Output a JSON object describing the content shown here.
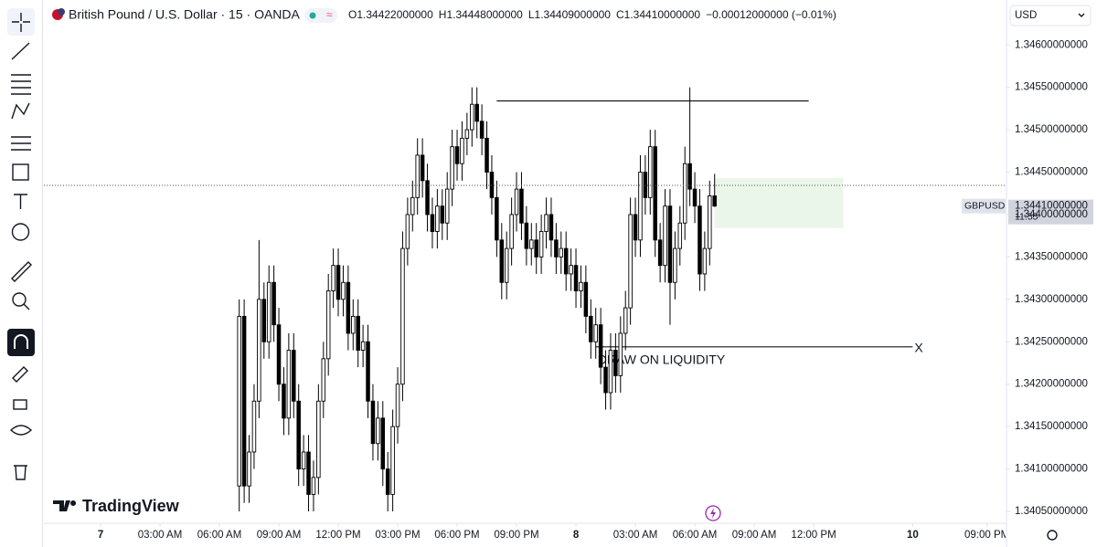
{
  "header": {
    "symbol": "British Pound / U.S. Dollar · 15 · OANDA",
    "ohlc": [
      {
        "label": "O",
        "value": "1.34422000000"
      },
      {
        "label": "H",
        "value": "1.34448000000"
      },
      {
        "label": "L",
        "value": "1.34409000000"
      },
      {
        "label": "C",
        "value": "1.34410000000"
      }
    ],
    "change": "−0.00012000000 (−0.01%)",
    "currency": "USD"
  },
  "brand": "TradingView",
  "chart_data": {
    "type": "candlestick",
    "x": [
      28,
      29,
      30,
      31,
      32,
      33,
      34,
      35,
      36,
      37,
      38,
      39,
      40,
      41,
      42,
      43,
      44,
      45,
      46,
      47,
      48,
      49,
      50,
      51,
      52,
      53,
      54,
      55,
      56,
      57,
      58,
      59,
      60,
      61,
      62,
      63,
      64,
      65,
      66,
      67,
      68,
      69,
      70,
      71,
      72,
      73,
      74,
      75,
      76,
      77,
      78,
      79,
      80,
      81,
      82,
      83,
      84,
      85,
      86,
      87,
      88,
      89,
      90,
      91,
      92,
      93,
      94,
      95,
      96,
      97,
      98,
      99,
      100,
      101,
      102,
      103,
      104,
      105,
      106,
      107,
      108,
      109,
      110,
      111,
      112,
      113,
      114,
      115,
      116,
      117,
      118,
      119,
      120,
      121,
      122,
      123,
      124
    ],
    "open": [
      1.3408,
      1.3428,
      1.3408,
      1.3412,
      1.3418,
      1.343,
      1.3425,
      1.3432,
      1.3427,
      1.342,
      1.3416,
      1.3424,
      1.3418,
      1.341,
      1.3412,
      1.3407,
      1.3409,
      1.3418,
      1.3423,
      1.3431,
      1.3434,
      1.343,
      1.3432,
      1.3426,
      1.3428,
      1.3424,
      1.3425,
      1.3418,
      1.3413,
      1.3416,
      1.341,
      1.3407,
      1.3415,
      1.342,
      1.3436,
      1.344,
      1.3442,
      1.3447,
      1.3444,
      1.344,
      1.3438,
      1.3441,
      1.3439,
      1.3443,
      1.3448,
      1.3446,
      1.3449,
      1.345,
      1.3453,
      1.3451,
      1.3449,
      1.3445,
      1.3442,
      1.3437,
      1.3432,
      1.3436,
      1.344,
      1.3443,
      1.3439,
      1.3436,
      1.3437,
      1.3435,
      1.3438,
      1.344,
      1.3437,
      1.3435,
      1.3436,
      1.3433,
      1.3434,
      1.3431,
      1.3432,
      1.3428,
      1.3425,
      1.3427,
      1.3422,
      1.3419,
      1.3424,
      1.3421,
      1.3426,
      1.3429,
      1.344,
      1.3437,
      1.3445,
      1.3442,
      1.3448,
      1.3437,
      1.3434,
      1.3441,
      1.3432,
      1.3436,
      1.3439,
      1.3446,
      1.3443,
      1.3441,
      1.3433,
      1.3436,
      1.34422
    ],
    "high": [
      1.343,
      1.343,
      1.3414,
      1.342,
      1.3437,
      1.3432,
      1.3434,
      1.3434,
      1.3429,
      1.3422,
      1.3426,
      1.3426,
      1.342,
      1.3414,
      1.3414,
      1.3411,
      1.342,
      1.3425,
      1.3433,
      1.3436,
      1.3436,
      1.3434,
      1.3434,
      1.343,
      1.343,
      1.3427,
      1.3427,
      1.342,
      1.3418,
      1.3418,
      1.3412,
      1.3417,
      1.3422,
      1.3438,
      1.3442,
      1.3444,
      1.3449,
      1.3449,
      1.3446,
      1.3442,
      1.3443,
      1.3443,
      1.3445,
      1.345,
      1.345,
      1.3451,
      1.3452,
      1.3455,
      1.3455,
      1.3453,
      1.3451,
      1.3447,
      1.3444,
      1.3439,
      1.3438,
      1.3442,
      1.3445,
      1.3445,
      1.3441,
      1.3439,
      1.3439,
      1.344,
      1.3442,
      1.3442,
      1.3439,
      1.3438,
      1.3438,
      1.3436,
      1.3436,
      1.3434,
      1.3434,
      1.343,
      1.3429,
      1.3429,
      1.3424,
      1.3426,
      1.3426,
      1.3428,
      1.3431,
      1.3442,
      1.3442,
      1.3447,
      1.3447,
      1.345,
      1.345,
      1.3439,
      1.3443,
      1.3443,
      1.3438,
      1.3441,
      1.3448,
      1.3455,
      1.3445,
      1.3443,
      1.3438,
      1.3444,
      1.34448
    ],
    "low": [
      1.3405,
      1.3406,
      1.3406,
      1.341,
      1.3416,
      1.3423,
      1.3423,
      1.3425,
      1.3418,
      1.3414,
      1.3414,
      1.3416,
      1.3408,
      1.3408,
      1.3405,
      1.3405,
      1.3407,
      1.3416,
      1.3421,
      1.3429,
      1.3428,
      1.3428,
      1.3424,
      1.3424,
      1.3422,
      1.3422,
      1.3416,
      1.3411,
      1.3411,
      1.3408,
      1.3405,
      1.3405,
      1.3413,
      1.3418,
      1.3434,
      1.3438,
      1.344,
      1.3442,
      1.3438,
      1.3436,
      1.3436,
      1.3437,
      1.3437,
      1.3441,
      1.3444,
      1.3444,
      1.3447,
      1.3448,
      1.3449,
      1.3447,
      1.3443,
      1.344,
      1.3435,
      1.343,
      1.343,
      1.3434,
      1.3438,
      1.3437,
      1.3434,
      1.3434,
      1.3433,
      1.3433,
      1.3436,
      1.3435,
      1.3433,
      1.3433,
      1.3431,
      1.3431,
      1.3429,
      1.3429,
      1.3426,
      1.3423,
      1.3423,
      1.342,
      1.3417,
      1.3417,
      1.3419,
      1.3419,
      1.3424,
      1.3427,
      1.3435,
      1.3435,
      1.344,
      1.344,
      1.3435,
      1.3432,
      1.3432,
      1.3427,
      1.343,
      1.3434,
      1.3437,
      1.3441,
      1.3439,
      1.3431,
      1.3431,
      1.3434,
      1.34409
    ],
    "close": [
      1.3428,
      1.3408,
      1.3412,
      1.3418,
      1.343,
      1.3425,
      1.3432,
      1.3427,
      1.342,
      1.3416,
      1.3424,
      1.3418,
      1.341,
      1.3412,
      1.3407,
      1.3409,
      1.3418,
      1.3423,
      1.3431,
      1.3434,
      1.343,
      1.3432,
      1.3426,
      1.3428,
      1.3424,
      1.3425,
      1.3418,
      1.3413,
      1.3416,
      1.341,
      1.3407,
      1.3415,
      1.342,
      1.3436,
      1.344,
      1.3442,
      1.3447,
      1.3444,
      1.344,
      1.3438,
      1.3441,
      1.3439,
      1.3443,
      1.3448,
      1.3446,
      1.3449,
      1.345,
      1.3453,
      1.3451,
      1.3449,
      1.3445,
      1.3442,
      1.3437,
      1.3432,
      1.3436,
      1.344,
      1.3443,
      1.3439,
      1.3436,
      1.3437,
      1.3435,
      1.3438,
      1.344,
      1.3437,
      1.3435,
      1.3436,
      1.3433,
      1.3434,
      1.3431,
      1.3432,
      1.3428,
      1.3425,
      1.3427,
      1.3422,
      1.3419,
      1.3424,
      1.3421,
      1.3426,
      1.3429,
      1.344,
      1.3437,
      1.3445,
      1.3442,
      1.3448,
      1.3437,
      1.3434,
      1.3441,
      1.3432,
      1.3436,
      1.3439,
      1.3446,
      1.3443,
      1.3441,
      1.3433,
      1.3436,
      1.34422,
      1.3441
    ],
    "up_color": "#ffffff",
    "down_color": "#000000",
    "outline_color": "#000000",
    "xlim": [
      -11.45,
      182.76
    ],
    "xticks": [
      {
        "value": 0,
        "label": "7"
      },
      {
        "value": 12,
        "label": "03:00 AM"
      },
      {
        "value": 24,
        "label": "06:00 AM"
      },
      {
        "value": 36,
        "label": "09:00 AM"
      },
      {
        "value": 48,
        "label": "12:00 PM"
      },
      {
        "value": 60,
        "label": "03:00 PM"
      },
      {
        "value": 72,
        "label": "06:00 PM"
      },
      {
        "value": 84,
        "label": "09:00 PM"
      },
      {
        "value": 96,
        "label": "8"
      },
      {
        "value": 108,
        "label": "03:00 AM"
      },
      {
        "value": 120,
        "label": "06:00 AM"
      },
      {
        "value": 132,
        "label": "09:00 AM"
      },
      {
        "value": 144,
        "label": "12:00 PM"
      },
      {
        "value": 164,
        "label": "10"
      },
      {
        "value": 179,
        "label": "09:00 PM"
      }
    ],
    "ylim": [
      1.34036,
      1.34653
    ],
    "yticks": [
      {
        "value": 1.3405,
        "label": "1.34050000000"
      },
      {
        "value": 1.341,
        "label": "1.34100000000"
      },
      {
        "value": 1.3415,
        "label": "1.34150000000"
      },
      {
        "value": 1.342,
        "label": "1.34200000000"
      },
      {
        "value": 1.3425,
        "label": "1.34250000000"
      },
      {
        "value": 1.343,
        "label": "1.34300000000"
      },
      {
        "value": 1.3435,
        "label": "1.34350000000"
      },
      {
        "value": 1.344,
        "label": "1.34400000000"
      },
      {
        "value": 1.3445,
        "label": "1.34450000000"
      },
      {
        "value": 1.345,
        "label": "1.34500000000"
      },
      {
        "value": 1.3455,
        "label": "1.34550000000"
      },
      {
        "value": 1.346,
        "label": "1.34600000000"
      }
    ],
    "last_price": {
      "value": 1.3441,
      "label": "1.34410000000"
    },
    "price_symbol": "GBPUSD",
    "countdown": "11:55",
    "drawings": [
      {
        "type": "hline",
        "price": 1.34534,
        "x": [
          80,
          143
        ]
      },
      {
        "type": "hline",
        "price": 1.34244,
        "x": [
          100,
          164
        ],
        "label": "DRAW ON LIQUIDITY",
        "end_label": "X"
      },
      {
        "type": "zone",
        "price": [
          1.34384,
          1.34443
        ],
        "x": [
          124,
          150
        ],
        "color": "#e9f6e9"
      }
    ]
  }
}
